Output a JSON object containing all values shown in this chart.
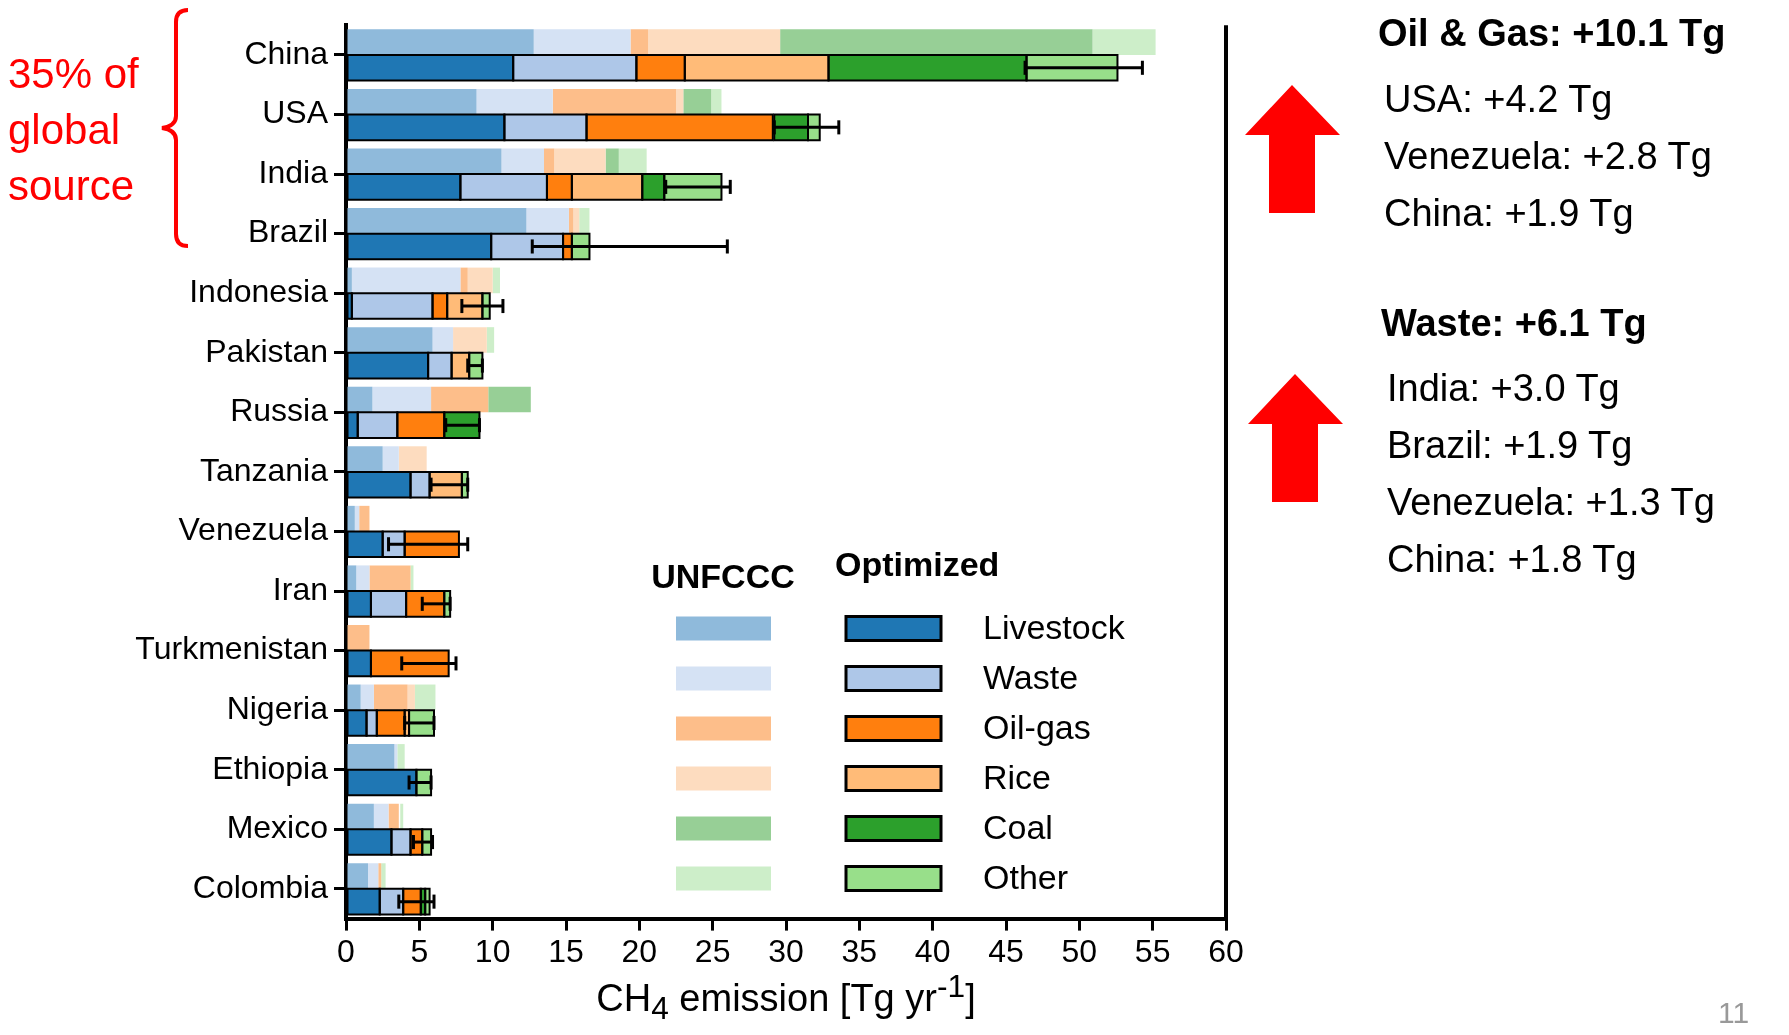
{
  "chart_data": {
    "type": "bar",
    "orientation": "horizontal",
    "categories": [
      "China",
      "USA",
      "India",
      "Brazil",
      "Indonesia",
      "Pakistan",
      "Russia",
      "Tanzania",
      "Venezuela",
      "Iran",
      "Turkmenistan",
      "Nigeria",
      "Ethiopia",
      "Mexico",
      "Colombia"
    ],
    "series": [
      {
        "color": "#8fbadb",
        "values": [
          12.8,
          8.9,
          10.6,
          12.3,
          0.4,
          5.9,
          1.8,
          2.5,
          0.6,
          0.7,
          null,
          1.0,
          3.3,
          1.9,
          1.5
        ],
        "base": [
          0,
          0,
          0,
          0,
          0,
          0,
          0,
          0,
          0,
          0,
          null,
          0,
          0,
          0,
          0
        ]
      },
      {
        "color": "#d5e2f4",
        "values": [
          6.6,
          5.2,
          2.9,
          2.9,
          7.4,
          1.4,
          4.0,
          1.1,
          0.3,
          0.9,
          null,
          0.9,
          0.2,
          1.0,
          0.7
        ],
        "base": [
          12.8,
          8.9,
          10.6,
          12.3,
          0.4,
          5.9,
          1.8,
          2.5,
          0.6,
          0.7,
          null,
          1.0,
          3.3,
          1.9,
          1.5
        ]
      },
      {
        "color": "#fdbe8a",
        "values": [
          1.2,
          8.4,
          0.7,
          0.3,
          0.5,
          null,
          3.9,
          null,
          0.7,
          2.8,
          1.6,
          2.3,
          null,
          0.7,
          0.2
        ],
        "base": [
          19.4,
          14.1,
          13.5,
          15.2,
          7.8,
          null,
          5.8,
          null,
          0.9,
          1.6,
          0,
          1.9,
          null,
          2.9,
          2.2
        ]
      },
      {
        "color": "#fddcbf",
        "values": [
          9.0,
          0.5,
          3.5,
          0.4,
          1.7,
          2.3,
          null,
          1.9,
          null,
          null,
          null,
          0.5,
          null,
          null,
          null
        ],
        "base": [
          20.6,
          22.5,
          14.2,
          15.5,
          8.3,
          7.3,
          null,
          3.6,
          null,
          null,
          null,
          4.2,
          null,
          null,
          null
        ]
      },
      {
        "color": "#97cf96",
        "values": [
          21.3,
          1.9,
          0.9,
          null,
          null,
          null,
          2.9,
          null,
          null,
          null,
          null,
          null,
          null,
          null,
          null
        ],
        "base": [
          29.6,
          23.0,
          17.7,
          null,
          null,
          null,
          9.7,
          null,
          null,
          null,
          null,
          null,
          null,
          null,
          null
        ]
      },
      {
        "color": "#cdeec9",
        "values": [
          4.3,
          0.7,
          1.9,
          0.7,
          0.5,
          0.5,
          null,
          null,
          null,
          0.2,
          null,
          1.4,
          0.5,
          0.2,
          0.3
        ],
        "base": [
          50.9,
          24.9,
          18.6,
          15.9,
          10.0,
          9.6,
          null,
          null,
          null,
          4.4,
          null,
          4.7,
          3.5,
          3.7,
          2.4
        ]
      },
      {
        "name": "Livestock",
        "color": "#1f77b4",
        "values": [
          11.4,
          10.8,
          7.8,
          9.9,
          0.4,
          5.6,
          0.8,
          4.4,
          2.5,
          1.7,
          1.7,
          1.4,
          4.8,
          3.1,
          2.3
        ],
        "base": [
          0,
          0,
          0,
          0,
          0,
          0,
          0,
          0,
          0,
          0,
          0,
          0,
          0,
          0,
          0
        ]
      },
      {
        "name": "Waste",
        "color": "#aec7e8",
        "values": [
          8.4,
          5.6,
          5.9,
          4.9,
          5.5,
          1.6,
          2.7,
          1.3,
          1.5,
          2.4,
          null,
          0.7,
          null,
          1.3,
          1.6
        ],
        "base": [
          11.4,
          10.8,
          7.8,
          9.9,
          0.4,
          5.6,
          0.8,
          4.4,
          2.5,
          1.7,
          null,
          1.4,
          null,
          3.1,
          2.3
        ]
      },
      {
        "name": "Oil-gas",
        "color": "#ff7f0e",
        "values": [
          3.3,
          12.7,
          1.7,
          0.6,
          1.0,
          null,
          3.2,
          null,
          3.7,
          2.6,
          5.3,
          1.9,
          null,
          0.8,
          1.2
        ],
        "base": [
          19.8,
          16.4,
          13.7,
          14.8,
          5.9,
          null,
          3.5,
          null,
          4.0,
          4.1,
          1.7,
          2.1,
          null,
          4.4,
          3.9
        ],
        "errors": [
          null,
          null,
          null,
          null,
          null,
          null,
          null,
          null,
          [
            2.9,
            8.3
          ],
          null,
          [
            3.8,
            7.5
          ],
          null,
          null,
          null,
          null
        ]
      },
      {
        "name": "Rice",
        "color": "#ffbb78",
        "values": [
          9.8,
          null,
          4.8,
          null,
          2.4,
          1.2,
          null,
          2.2,
          null,
          null,
          null,
          0.3,
          null,
          null,
          null
        ],
        "base": [
          23.1,
          null,
          15.4,
          null,
          6.9,
          7.2,
          null,
          5.7,
          null,
          null,
          null,
          4.0,
          null,
          null,
          null
        ]
      },
      {
        "name": "Coal",
        "color": "#2ca02c",
        "values": [
          13.5,
          2.3,
          1.5,
          null,
          null,
          null,
          2.4,
          null,
          null,
          null,
          null,
          null,
          null,
          null,
          0.3
        ],
        "base": [
          32.9,
          29.2,
          20.2,
          null,
          null,
          null,
          6.7,
          null,
          null,
          null,
          null,
          null,
          null,
          null,
          5.1
        ],
        "errors": [
          null,
          null,
          null,
          null,
          null,
          null,
          [
            6.8,
            9.1
          ],
          null,
          null,
          null,
          null,
          null,
          null,
          null,
          null
        ]
      },
      {
        "name": "Other",
        "color": "#98df8a",
        "values": [
          6.2,
          0.8,
          3.9,
          1.2,
          0.5,
          0.9,
          null,
          0.4,
          null,
          0.4,
          null,
          1.7,
          1.0,
          0.6,
          0.3
        ],
        "base": [
          46.4,
          31.5,
          21.7,
          15.4,
          9.3,
          8.4,
          null,
          7.9,
          null,
          6.7,
          null,
          4.3,
          4.8,
          5.2,
          5.4
        ],
        "errors": [
          [
            46.3,
            54.3
          ],
          [
            29.2,
            33.6
          ],
          [
            21.8,
            26.2
          ],
          [
            12.7,
            26.0
          ],
          [
            7.9,
            10.7
          ],
          [
            8.3,
            9.3
          ],
          null,
          [
            5.8,
            8.3
          ],
          null,
          [
            5.2,
            7.1
          ],
          null,
          [
            4.0,
            6.0
          ],
          [
            4.3,
            5.8
          ],
          [
            4.6,
            5.9
          ],
          [
            3.6,
            6.0
          ]
        ]
      }
    ],
    "xlim": [
      0,
      60
    ],
    "xticks": [
      0,
      5,
      10,
      15,
      20,
      25,
      30,
      35,
      40,
      45,
      50,
      55,
      60
    ],
    "xlabel": "CH$_{4}$ emission [Tg yr$^{-1}$]",
    "legend": "bottom right",
    "annotations": [
      "UNFCCC",
      "Optimized",
      "35% of global source",
      "Oil & Gas: +10.1 Tg",
      "USA: +4.2 Tg",
      "Venezuela: +2.8 Tg",
      "China: +1.9 Tg",
      "Waste: +6.1 Tg",
      "India: +3.0 Tg",
      "Brazil: +1.9 Tg",
      "Venezuela: +1.3 Tg",
      "China: +1.8 Tg",
      "11"
    ]
  }
}
